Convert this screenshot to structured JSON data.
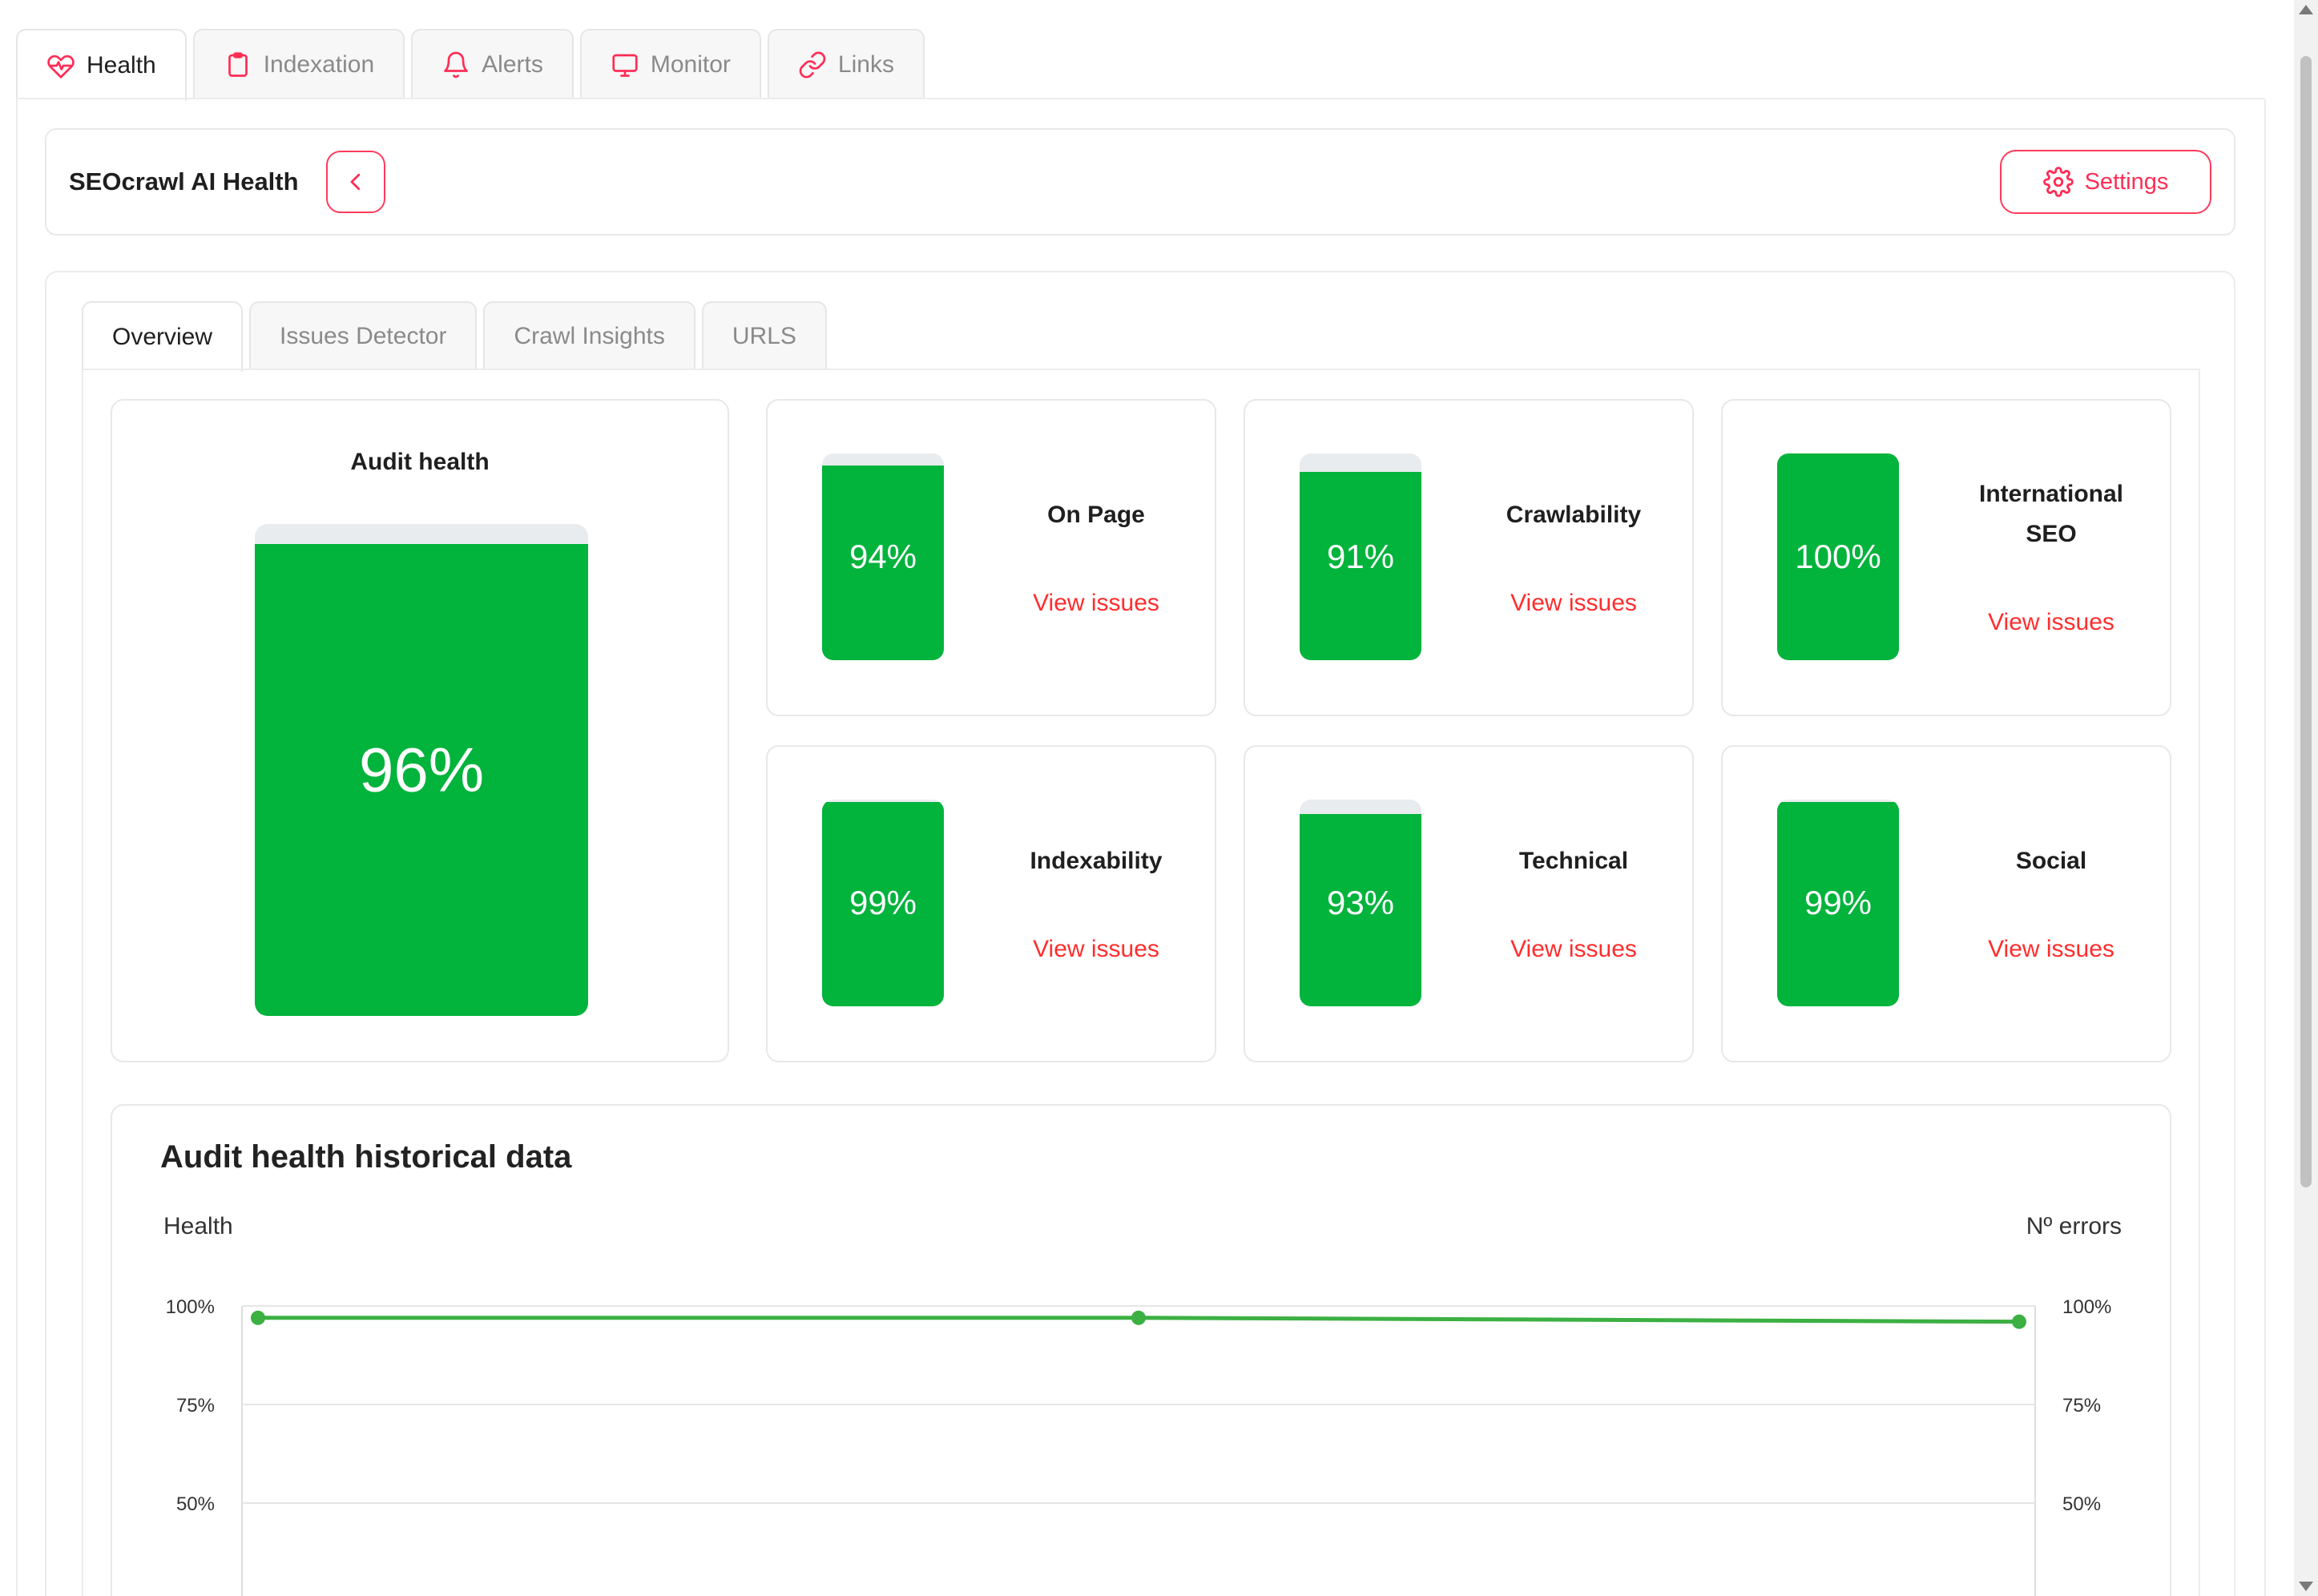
{
  "top_tabs": [
    {
      "label": "Health",
      "icon": "heart-pulse-icon",
      "active": true
    },
    {
      "label": "Indexation",
      "icon": "clipboard-icon",
      "active": false
    },
    {
      "label": "Alerts",
      "icon": "bell-icon",
      "active": false
    },
    {
      "label": "Monitor",
      "icon": "monitor-icon",
      "active": false
    },
    {
      "label": "Links",
      "icon": "link-icon",
      "active": false
    }
  ],
  "header": {
    "title": "SEOcrawl AI Health",
    "settings_label": "Settings"
  },
  "sub_tabs": [
    {
      "label": "Overview",
      "active": true
    },
    {
      "label": "Issues Detector",
      "active": false
    },
    {
      "label": "Crawl Insights",
      "active": false
    },
    {
      "label": "URLS",
      "active": false
    }
  ],
  "audit_health": {
    "title": "Audit health",
    "value": 0.96,
    "label": "96%"
  },
  "metrics": [
    {
      "name": "On Page",
      "value": 0.94,
      "label": "94%",
      "link": "View issues"
    },
    {
      "name": "Crawlability",
      "value": 0.91,
      "label": "91%",
      "link": "View issues"
    },
    {
      "name": "International SEO",
      "value": 1.0,
      "label": "100%",
      "link": "View issues"
    },
    {
      "name": "Indexability",
      "value": 0.99,
      "label": "99%",
      "link": "View issues"
    },
    {
      "name": "Technical",
      "value": 0.93,
      "label": "93%",
      "link": "View issues"
    },
    {
      "name": "Social",
      "value": 0.99,
      "label": "99%",
      "link": "View issues"
    }
  ],
  "history": {
    "title": "Audit health historical data",
    "left_axis_title": "Health",
    "right_axis_title": "Nº errors"
  },
  "chart_data": {
    "type": "line",
    "title": "Audit health historical data",
    "ylabel": "Health",
    "y2label": "Nº errors",
    "y_ticks": [
      "100%",
      "75%",
      "50%"
    ],
    "y2_ticks": [
      "100%",
      "75%",
      "50%"
    ],
    "ylim": [
      0,
      100
    ],
    "grid": true,
    "series": [
      {
        "name": "",
        "color": "#3cb043",
        "values": [
          97,
          97,
          96
        ]
      }
    ]
  },
  "colors": {
    "accent": "#ff2d55",
    "bar_green": "#02b33c",
    "line_green": "#3cb043",
    "link_red": "#ff2d2d"
  }
}
